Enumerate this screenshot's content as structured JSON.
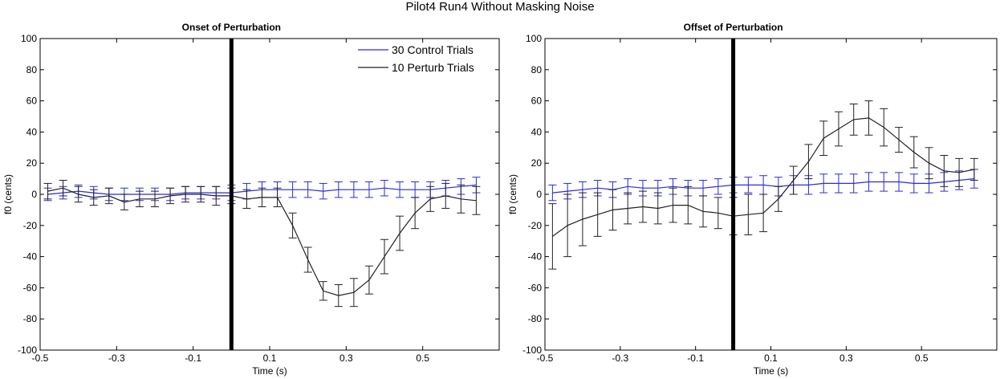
{
  "figure_title": "Pilot4 Run4 Without Masking Noise",
  "colors": {
    "control": "#2a2ae0",
    "perturb": "#222222",
    "marker": "#000000"
  },
  "chart_data": [
    {
      "type": "line",
      "title": "Onset of Perturbation",
      "xlabel": "Time (s)",
      "ylabel": "f0 (cents)",
      "xlim": [
        -0.5,
        0.7
      ],
      "ylim": [
        -100,
        100
      ],
      "xticks": [
        -0.5,
        -0.3,
        -0.1,
        0.1,
        0.3,
        0.5
      ],
      "xtick_labels": [
        "-0.5",
        "-0.3",
        "-0.1",
        "0.1",
        "0.3",
        "0.5"
      ],
      "yticks": [
        -100,
        -80,
        -60,
        -40,
        -20,
        0,
        20,
        40,
        60,
        80,
        100
      ],
      "ytick_labels": [
        "-100",
        "-80",
        "-60",
        "-40",
        "-20",
        "0",
        "20",
        "40",
        "60",
        "80",
        "100"
      ],
      "grid": false,
      "legend": "top-right",
      "vline_x": 0,
      "x": [
        -0.48,
        -0.44,
        -0.4,
        -0.36,
        -0.32,
        -0.28,
        -0.24,
        -0.2,
        -0.16,
        -0.12,
        -0.08,
        -0.04,
        0.0,
        0.04,
        0.08,
        0.12,
        0.16,
        0.2,
        0.24,
        0.28,
        0.32,
        0.36,
        0.4,
        0.44,
        0.48,
        0.52,
        0.56,
        0.6,
        0.64
      ],
      "series": [
        {
          "name": "30 Control Trials",
          "values": [
            0,
            1,
            2,
            1,
            0,
            0,
            0,
            0,
            0,
            1,
            1,
            1,
            1,
            2,
            3,
            3,
            3,
            3,
            2,
            3,
            3,
            3,
            4,
            3,
            3,
            3,
            4,
            5,
            6
          ],
          "errors": [
            4,
            4,
            4,
            4,
            4,
            4,
            4,
            4,
            4,
            4,
            4,
            4,
            5,
            5,
            5,
            5,
            5,
            5,
            5,
            5,
            5,
            5,
            5,
            5,
            5,
            5,
            5,
            5,
            5
          ]
        },
        {
          "name": "10 Perturb Trials",
          "values": [
            2,
            4,
            0,
            -2,
            -1,
            -5,
            -3,
            -3,
            -1,
            0,
            0,
            -1,
            -1,
            -3,
            -2,
            -2,
            -20,
            -42,
            -62,
            -65,
            -63,
            -55,
            -40,
            -25,
            -12,
            -3,
            -1,
            -3,
            -4
          ],
          "errors": [
            5,
            5,
            5,
            5,
            5,
            5,
            5,
            5,
            5,
            5,
            5,
            6,
            5,
            6,
            6,
            6,
            8,
            8,
            6,
            7,
            9,
            9,
            11,
            11,
            10,
            8,
            8,
            9,
            9
          ]
        }
      ]
    },
    {
      "type": "line",
      "title": "Offset of Perturbation",
      "xlabel": "Time (s)",
      "ylabel": "f0 (cents)",
      "xlim": [
        -0.5,
        0.7
      ],
      "ylim": [
        -100,
        100
      ],
      "xticks": [
        -0.5,
        -0.3,
        -0.1,
        0.1,
        0.3,
        0.5
      ],
      "xtick_labels": [
        "-0.5",
        "-0.3",
        "-0.1",
        "0.1",
        "0.3",
        "0.5"
      ],
      "yticks": [
        -100,
        -80,
        -60,
        -40,
        -20,
        0,
        20,
        40,
        60,
        80,
        100
      ],
      "ytick_labels": [
        "-100",
        "-80",
        "-60",
        "-40",
        "-20",
        "0",
        "20",
        "40",
        "60",
        "80",
        "100"
      ],
      "grid": false,
      "legend": "none",
      "vline_x": 0,
      "x": [
        -0.48,
        -0.44,
        -0.4,
        -0.36,
        -0.32,
        -0.28,
        -0.24,
        -0.2,
        -0.16,
        -0.12,
        -0.08,
        -0.04,
        0.0,
        0.04,
        0.08,
        0.12,
        0.16,
        0.2,
        0.24,
        0.28,
        0.32,
        0.36,
        0.4,
        0.44,
        0.48,
        0.52,
        0.56,
        0.6,
        0.64
      ],
      "series": [
        {
          "name": "30 Control Trials",
          "values": [
            1,
            2,
            3,
            4,
            3,
            5,
            4,
            4,
            5,
            4,
            4,
            5,
            6,
            6,
            6,
            5,
            6,
            6,
            7,
            7,
            7,
            8,
            8,
            8,
            7,
            7,
            8,
            9,
            10
          ],
          "errors": [
            5,
            5,
            5,
            5,
            5,
            5,
            5,
            5,
            5,
            5,
            5,
            5,
            5,
            5,
            6,
            6,
            6,
            6,
            6,
            6,
            6,
            6,
            6,
            6,
            6,
            6,
            6,
            6,
            6
          ]
        },
        {
          "name": "10 Perturb Trials",
          "values": [
            -27,
            -20,
            -16,
            -13,
            -10,
            -9,
            -8,
            -9,
            -7,
            -7,
            -11,
            -12,
            -14,
            -13,
            -12,
            -3,
            9,
            21,
            36,
            42,
            48,
            49,
            43,
            35,
            27,
            20,
            15,
            14,
            16
          ],
          "errors": [
            21,
            20,
            17,
            14,
            13,
            10,
            10,
            10,
            11,
            12,
            10,
            10,
            12,
            13,
            12,
            8,
            9,
            11,
            11,
            11,
            10,
            11,
            12,
            8,
            10,
            10,
            10,
            9,
            7
          ]
        }
      ]
    }
  ]
}
